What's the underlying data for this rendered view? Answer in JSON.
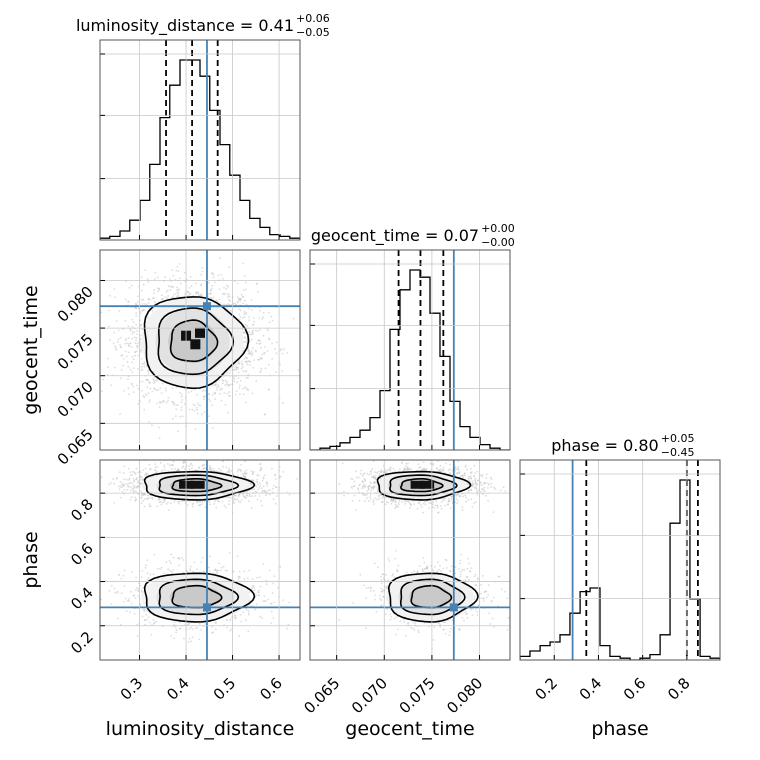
{
  "chart_data": {
    "type": "corner",
    "parameters": [
      "luminosity_distance",
      "geocent_time",
      "phase"
    ],
    "axis_labels": {
      "luminosity_distance": "luminosity_distance",
      "geocent_time": "geocent_time",
      "phase": "phase"
    },
    "ranges": {
      "luminosity_distance": [
        0.215,
        0.645
      ],
      "geocent_time": [
        0.0622,
        0.0832
      ],
      "phase": [
        0.045,
        0.95
      ]
    },
    "ticks": {
      "luminosity_distance": [
        0.3,
        0.4,
        0.5,
        0.6
      ],
      "geocent_time": [
        0.065,
        0.07,
        0.075,
        0.08
      ],
      "phase": [
        0.2,
        0.4,
        0.6,
        0.8
      ]
    },
    "tick_labels": {
      "luminosity_distance": [
        "0.3",
        "0.4",
        "0.5",
        "0.6"
      ],
      "geocent_time": [
        "0.065",
        "0.070",
        "0.075",
        "0.080"
      ],
      "phase": [
        "0.2",
        "0.4",
        "0.6",
        "0.8"
      ]
    },
    "diag_ticks": {
      "luminosity_distance": [
        0.33,
        0.67,
        1.0
      ],
      "geocent_time": [
        0.33,
        0.67,
        1.0
      ],
      "phase": [
        0.33,
        0.67,
        1.0
      ]
    },
    "titles": {
      "luminosity_distance": {
        "main": "luminosity_distance = 0.41",
        "plus": "+0.06",
        "minus": "−0.05"
      },
      "geocent_time": {
        "main": "geocent_time = 0.07",
        "plus": "+0.00",
        "minus": "−0.00"
      },
      "phase": {
        "main": "phase = 0.80",
        "plus": "+0.05",
        "minus": "−0.45"
      }
    },
    "truths": {
      "luminosity_distance": 0.445,
      "geocent_time": 0.0773,
      "phase": 0.283
    },
    "quantiles": {
      "luminosity_distance": [
        0.357,
        0.413,
        0.468
      ],
      "geocent_time": [
        0.0715,
        0.0738,
        0.0762
      ],
      "phase": [
        0.345,
        0.8,
        0.85
      ]
    },
    "histograms": {
      "luminosity_distance": {
        "edges": [
          0.215,
          0.236,
          0.258,
          0.279,
          0.301,
          0.322,
          0.344,
          0.365,
          0.387,
          0.408,
          0.43,
          0.451,
          0.473,
          0.494,
          0.516,
          0.537,
          0.559,
          0.58,
          0.602,
          0.623,
          0.645
        ],
        "values": [
          0.01,
          0.02,
          0.05,
          0.11,
          0.22,
          0.42,
          0.68,
          0.86,
          1.0,
          1.0,
          0.91,
          0.72,
          0.53,
          0.36,
          0.22,
          0.12,
          0.07,
          0.03,
          0.02,
          0.01
        ]
      },
      "geocent_time": {
        "edges": [
          0.0622,
          0.06325,
          0.0643,
          0.06535,
          0.0664,
          0.06745,
          0.0685,
          0.06955,
          0.0706,
          0.07165,
          0.0727,
          0.07375,
          0.0748,
          0.07585,
          0.0769,
          0.07795,
          0.079,
          0.08005,
          0.0811,
          0.08215,
          0.0832
        ],
        "values": [
          0.0,
          0.01,
          0.02,
          0.04,
          0.07,
          0.11,
          0.18,
          0.33,
          0.67,
          0.89,
          1.0,
          0.96,
          0.76,
          0.52,
          0.27,
          0.13,
          0.07,
          0.03,
          0.01,
          0.0
        ]
      },
      "phase": {
        "edges": [
          0.045,
          0.09,
          0.136,
          0.181,
          0.226,
          0.271,
          0.317,
          0.362,
          0.407,
          0.452,
          0.498,
          0.543,
          0.588,
          0.633,
          0.679,
          0.724,
          0.769,
          0.814,
          0.86,
          0.905,
          0.95
        ],
        "values": [
          0.02,
          0.05,
          0.08,
          0.1,
          0.14,
          0.26,
          0.38,
          0.4,
          0.08,
          0.02,
          0.01,
          0.0,
          0.01,
          0.03,
          0.14,
          0.76,
          1.0,
          0.34,
          0.02,
          0.01
        ]
      }
    },
    "density": {
      "geocent_time|luminosity_distance": {
        "center": [
          0.414,
          0.0736
        ],
        "sigma": [
          0.055,
          0.0024
        ],
        "core": [
          [
            0.4,
            0.0742
          ],
          [
            0.42,
            0.0733
          ],
          [
            0.43,
            0.0745
          ]
        ]
      },
      "phase|luminosity_distance": {
        "modes": [
          {
            "center": [
              0.42,
              0.835
            ],
            "sigma": [
              0.058,
              0.032
            ],
            "weight": 0.6
          },
          {
            "center": [
              0.42,
              0.33
            ],
            "sigma": [
              0.058,
              0.055
            ],
            "weight": 0.4
          }
        ],
        "core": [
          [
            0.4,
            0.838
          ],
          [
            0.425,
            0.838
          ]
        ]
      },
      "phase|geocent_time": {
        "modes": [
          {
            "center": [
              0.0738,
              0.835
            ],
            "sigma": [
              0.0024,
              0.032
            ],
            "weight": 0.6
          },
          {
            "center": [
              0.0748,
              0.33
            ],
            "sigma": [
              0.0023,
              0.055
            ],
            "weight": 0.4
          }
        ],
        "core": [
          [
            0.0735,
            0.838
          ],
          [
            0.0745,
            0.838
          ]
        ]
      }
    },
    "grid": true,
    "truth_color": "#4682b4",
    "point_color": "#bbbbbb",
    "line_color": "#000000"
  }
}
